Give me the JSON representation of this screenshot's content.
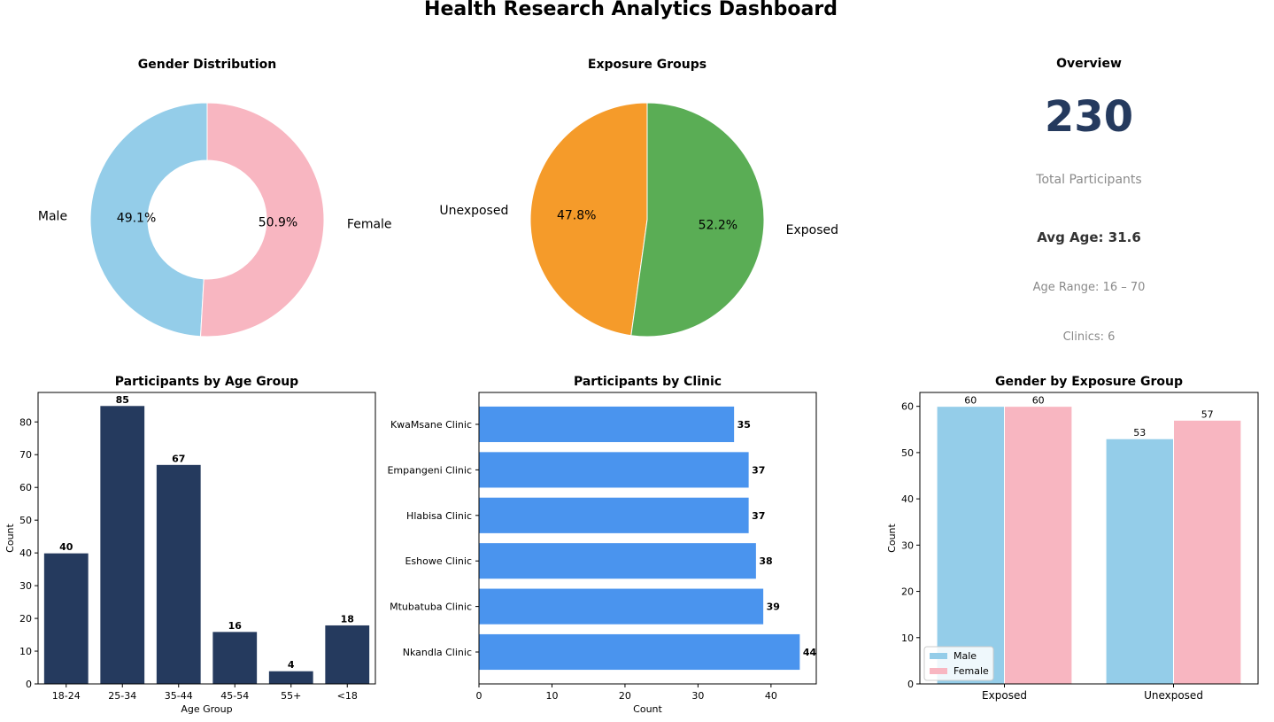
{
  "dashboard": {
    "title": "Health Research Analytics Dashboard"
  },
  "overview": {
    "title": "Overview",
    "total": "230",
    "total_label": "Total Participants",
    "avg_age": "Avg Age: 31.6",
    "age_range": "Age Range: 16 – 70",
    "clinics": "Clinics: 6"
  },
  "chart_data": [
    {
      "type": "pie",
      "variant": "donut",
      "title": "Gender Distribution",
      "labels": [
        "Male",
        "Female"
      ],
      "values": [
        49.1,
        50.9
      ],
      "pct_labels": [
        "49.1%",
        "50.9%"
      ],
      "colors": [
        "#94cde9",
        "#f8b6c1"
      ]
    },
    {
      "type": "pie",
      "title": "Exposure Groups",
      "labels": [
        "Unexposed",
        "Exposed"
      ],
      "values": [
        47.8,
        52.2
      ],
      "pct_labels": [
        "47.8%",
        "52.2%"
      ],
      "colors": [
        "#f59b2a",
        "#5aad55"
      ]
    },
    {
      "type": "bar",
      "title": "Participants by Age Group",
      "categories": [
        "18-24",
        "25-34",
        "35-44",
        "45-54",
        "55+",
        "<18"
      ],
      "values": [
        40,
        85,
        67,
        16,
        4,
        18
      ],
      "xlabel": "Age Group",
      "ylabel": "Count",
      "ylim": [
        0,
        89
      ],
      "yticks": [
        0,
        10,
        20,
        30,
        40,
        50,
        60,
        70,
        80
      ],
      "color": "#253a5e"
    },
    {
      "type": "bar",
      "orientation": "horizontal",
      "title": "Participants by Clinic",
      "categories": [
        "Nkandla Clinic",
        "Mtubatuba Clinic",
        "Eshowe Clinic",
        "Hlabisa Clinic",
        "Empangeni Clinic",
        "KwaMsane Clinic"
      ],
      "values": [
        44,
        39,
        38,
        37,
        37,
        35
      ],
      "xlabel": "Count",
      "ylabel": "",
      "xlim": [
        0,
        46.2
      ],
      "xticks": [
        0,
        10,
        20,
        30,
        40
      ],
      "color": "#4a94ee"
    },
    {
      "type": "bar",
      "title": "Gender by Exposure Group",
      "categories": [
        "Exposed",
        "Unexposed"
      ],
      "series": [
        {
          "name": "Male",
          "values": [
            60,
            53
          ],
          "color": "#94cde9"
        },
        {
          "name": "Female",
          "values": [
            60,
            57
          ],
          "color": "#f8b6c1"
        }
      ],
      "xlabel": "",
      "ylabel": "Count",
      "ylim": [
        0,
        63
      ],
      "yticks": [
        0,
        10,
        20,
        30,
        40,
        50,
        60
      ],
      "legend": "bottom-left"
    }
  ]
}
